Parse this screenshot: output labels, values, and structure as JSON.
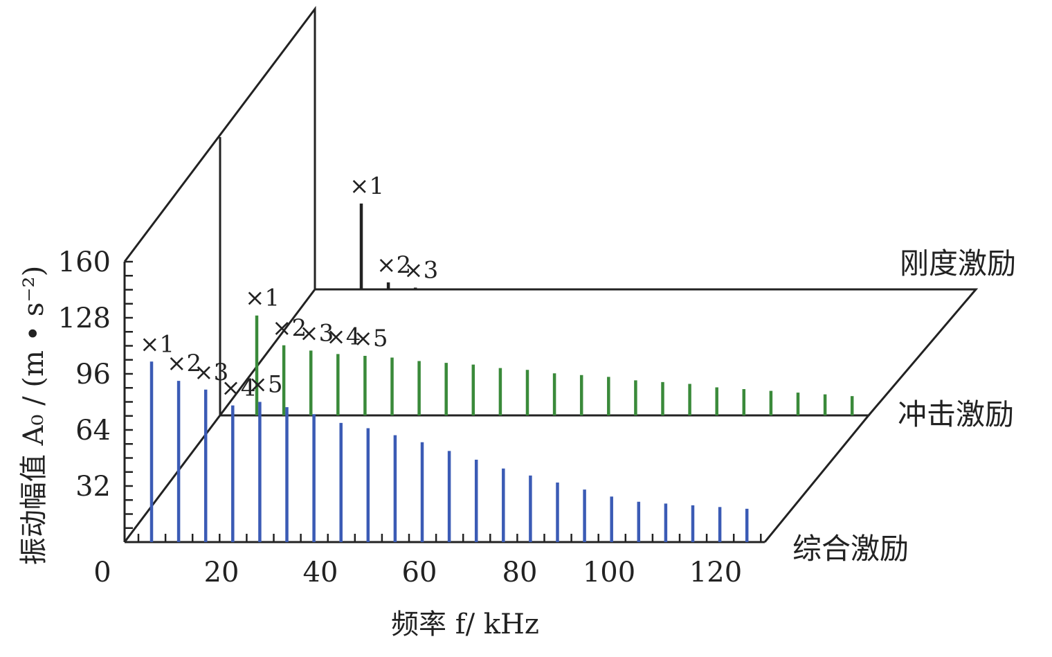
{
  "chart_data": {
    "type": "bar",
    "title": "",
    "xlabel": "频率 f/ kHz",
    "ylabel": "振动幅值 A₀ / (m • s⁻²)",
    "x_ticks": [
      "0",
      "20",
      "40",
      "60",
      "80",
      "100",
      "120"
    ],
    "y_ticks": [
      "160",
      "128",
      "96",
      "64",
      "32"
    ],
    "xlim": [
      0,
      130
    ],
    "ylim": [
      0,
      160
    ],
    "grid": false,
    "series": [
      {
        "name": "综合激励",
        "color": "#3b5bb5",
        "x": [
          5.5,
          11,
          16.5,
          22,
          27.5,
          33,
          38.5,
          44,
          49.5,
          55,
          60.5,
          66,
          71.5,
          77,
          82.5,
          88,
          93.5,
          99,
          104.5,
          110,
          115.5,
          121,
          126.5
        ],
        "values": [
          103,
          92,
          87,
          78,
          80,
          77,
          73,
          68,
          65,
          61,
          57,
          52,
          47,
          42,
          38,
          34,
          30,
          26,
          23,
          22,
          21,
          20,
          19
        ],
        "order_labels": [
          "×1",
          "×2",
          "×3",
          "×4",
          "×5"
        ]
      },
      {
        "name": "冲击激励",
        "color": "#3a8a3a",
        "x": [
          5.5,
          11,
          16.5,
          22,
          27.5,
          33,
          38.5,
          44,
          49.5,
          55,
          60.5,
          66,
          71.5,
          77,
          82.5,
          88,
          93.5,
          99,
          104.5,
          110,
          115.5,
          121,
          126.5
        ],
        "values": [
          57,
          40,
          37,
          35,
          34,
          33,
          31,
          30,
          29,
          27,
          26,
          24,
          23,
          22,
          20,
          19,
          18,
          16,
          15,
          14,
          13,
          12,
          11
        ],
        "order_labels": [
          "×1",
          "×2",
          "×3",
          "×4",
          "×5"
        ]
      },
      {
        "name": "刚度激励",
        "color": "#222222",
        "x": [
          5.5,
          11,
          16.5
        ],
        "values": [
          49,
          4,
          1
        ],
        "order_labels": [
          "×1",
          "×2",
          "×3"
        ]
      }
    ]
  }
}
